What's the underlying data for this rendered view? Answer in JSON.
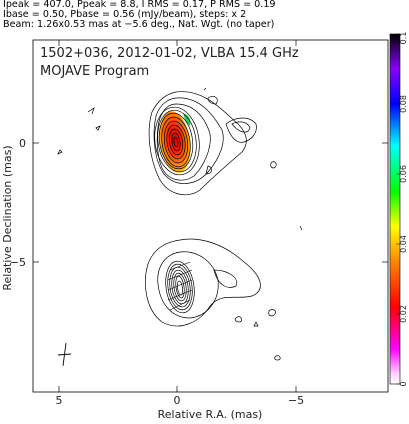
{
  "header": {
    "line1": "Ipeak = 407.0, Ppeak = 8.8, I RMS = 0.17, P RMS = 0.19",
    "line2": "Ibase = 0.50, Pbase = 0.56 (mJy/beam), steps: x 2",
    "line3": "Beam: 1.26x0.53 mas at −5.6 deg., Nat. Wgt. (no taper)"
  },
  "plot": {
    "title": "1502+036, 2012-01-02, VLBA 15.4 GHz",
    "subtitle": "MOJAVE Program",
    "xlabel": "Relative R.A. (mas)",
    "ylabel": "Relative Declination (mas)",
    "x_ticks": [
      "5",
      "0",
      "−5"
    ],
    "y_ticks": [
      "0",
      "−5"
    ]
  },
  "colorbar": {
    "ticks": [
      "0",
      "0.02",
      "0.04",
      "0.06",
      "0.08",
      "0.1"
    ],
    "colors": [
      "#ffffff",
      "#ff00ff",
      "#ff0000",
      "#ff8800",
      "#ffff00",
      "#00ff00",
      "#00ffff",
      "#0000ff",
      "#8800ff",
      "#000000"
    ]
  }
}
